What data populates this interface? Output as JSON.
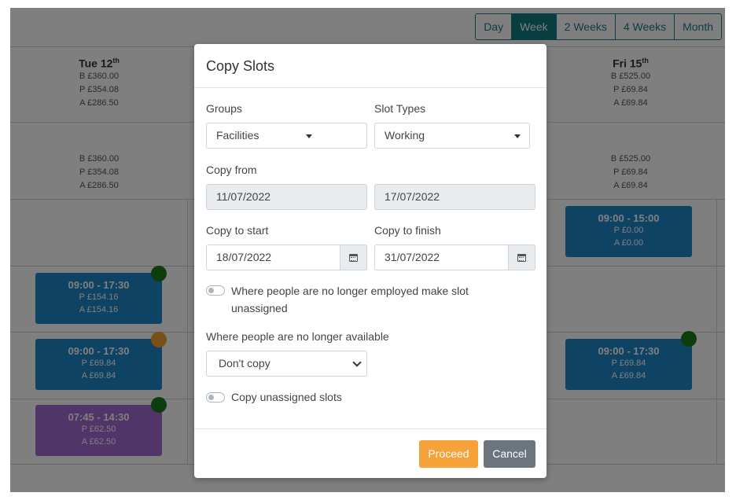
{
  "view_switch": [
    "Day",
    "Week",
    "2 Weeks",
    "4 Weeks",
    "Month"
  ],
  "view_active": "Week",
  "calendar": {
    "days": [
      {
        "name": "Tue 12",
        "sup": "th",
        "summary": [
          "B £360.00",
          "P £354.08",
          "A £286.50"
        ],
        "summary2": [
          "B £360.00",
          "P £354.08",
          "A £286.50"
        ]
      },
      {
        "name": "Fri 15",
        "sup": "th",
        "summary": [
          "B £525.00",
          "P £69.84",
          "A £69.84"
        ],
        "summary2": [
          "B £525.00",
          "P £69.84",
          "A £69.84"
        ]
      }
    ],
    "slots": [
      {
        "time": "09:00 - 17:30",
        "p": "P £154.16",
        "a": "A £154.16",
        "color": "#1f87c8",
        "dot": "#1a7a1a"
      },
      {
        "time": "09:00 - 17:30",
        "p": "P £69.84",
        "a": "A £69.84",
        "color": "#1f87c8",
        "dot": "#f0a030"
      },
      {
        "time": "07:45 - 14:30",
        "p": "P £62.50",
        "a": "A £62.50",
        "color": "#a56ad1",
        "dot": "#1a7a1a"
      },
      {
        "time": "09:00 - 15:00",
        "p": "P £0.00",
        "a": "A £0.00",
        "color": "#1f87c8",
        "dot": null
      },
      {
        "time": "09:00 - 17:30",
        "p": "P £69.84",
        "a": "A £69.84",
        "color": "#1f87c8",
        "dot": "#1a7a1a"
      }
    ]
  },
  "modal": {
    "title": "Copy Slots",
    "groups_label": "Groups",
    "groups_value": "Facilities",
    "slot_types_label": "Slot Types",
    "slot_types_value": "Working",
    "copy_from_label": "Copy from",
    "copy_from_start": "11/07/2022",
    "copy_from_end": "17/07/2022",
    "copy_to_start_label": "Copy to start",
    "copy_to_start_value": "18/07/2022",
    "copy_to_finish_label": "Copy to finish",
    "copy_to_finish_value": "31/07/2022",
    "toggle_unemployed_text": "Where people are no longer employed make slot unassigned",
    "toggle_unemployed_on": false,
    "unavailable_label": "Where people are no longer available",
    "unavailable_value": "Don't copy",
    "toggle_unassigned_text": "Copy unassigned slots",
    "toggle_unassigned_on": false,
    "proceed_label": "Proceed",
    "cancel_label": "Cancel"
  },
  "colors": {
    "accent": "#117a84",
    "proceed": "#f5a23a",
    "cancel": "#6c757d",
    "slot_blue": "#1f87c8",
    "slot_purple": "#a56ad1"
  }
}
